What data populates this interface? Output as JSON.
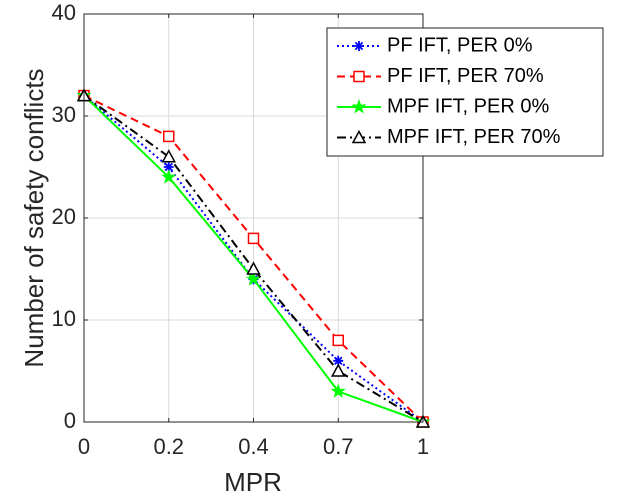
{
  "chart_data": {
    "type": "line",
    "x_tick_labels": [
      "0",
      "0.2",
      "0.4",
      "0.7",
      "1"
    ],
    "y_ticks": [
      0,
      10,
      20,
      30,
      40
    ],
    "ylim": [
      0,
      40
    ],
    "xlabel": "MPR",
    "ylabel": "Number of safety conflicts",
    "grid": true,
    "legend_position": "top-right",
    "series": [
      {
        "name": "PF IFT, PER 0%",
        "values": [
          32,
          25,
          14,
          6,
          0
        ],
        "color": "#0000ff",
        "line_style": "dotted",
        "marker": "asterisk"
      },
      {
        "name": "PF IFT, PER 70%",
        "values": [
          32,
          28,
          18,
          8,
          0
        ],
        "color": "#ff0000",
        "line_style": "dashed",
        "marker": "square"
      },
      {
        "name": "MPF IFT, PER 0%",
        "values": [
          32,
          24,
          14,
          3,
          0
        ],
        "color": "#00ff00",
        "line_style": "solid",
        "marker": "star"
      },
      {
        "name": "MPF IFT, PER 70%",
        "values": [
          32,
          26,
          15,
          5,
          0
        ],
        "color": "#000000",
        "line_style": "dashdot",
        "marker": "triangle"
      }
    ]
  }
}
